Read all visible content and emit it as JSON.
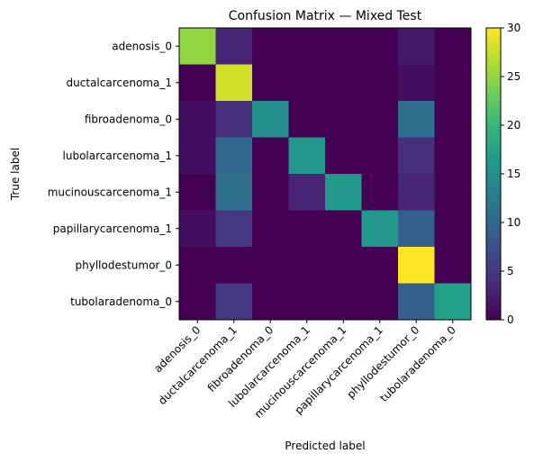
{
  "chart_data": {
    "type": "heatmap",
    "title": "Confusion Matrix — Mixed Test",
    "xlabel": "Predicted label",
    "ylabel": "True label",
    "row_labels": [
      "adenosis_0",
      "ductalcarcenoma_1",
      "fibroadenoma_0",
      "lubolarcarcenoma_1",
      "mucinouscarcenoma_1",
      "papillarycarcenoma_1",
      "phyllodestumor_0",
      "tubolaradenoma_0"
    ],
    "col_labels": [
      "adenosis_0",
      "ductalcarcenoma_1",
      "fibroadenoma_0",
      "lubolarcarcenoma_1",
      "mucinouscarcenoma_1",
      "papillarycarcenoma_1",
      "phyllodestumor_0",
      "tubolaradenoma_0"
    ],
    "matrix": [
      [
        25,
        3,
        0,
        0,
        0,
        0,
        2,
        0
      ],
      [
        0,
        28,
        0,
        0,
        0,
        0,
        1,
        0
      ],
      [
        1,
        4,
        15,
        0,
        0,
        0,
        11,
        0
      ],
      [
        1,
        10,
        0,
        16,
        0,
        0,
        4,
        0
      ],
      [
        0,
        11,
        0,
        3,
        16,
        0,
        3,
        0
      ],
      [
        1,
        5,
        0,
        0,
        0,
        16,
        9,
        0
      ],
      [
        0,
        0,
        0,
        0,
        0,
        0,
        30,
        0
      ],
      [
        0,
        5,
        0,
        0,
        0,
        0,
        9,
        17
      ]
    ],
    "colorbar": {
      "min": 0,
      "max": 30,
      "ticks": [
        0,
        5,
        10,
        15,
        20,
        25,
        30
      ]
    },
    "colormap": "viridis",
    "grid": false
  }
}
